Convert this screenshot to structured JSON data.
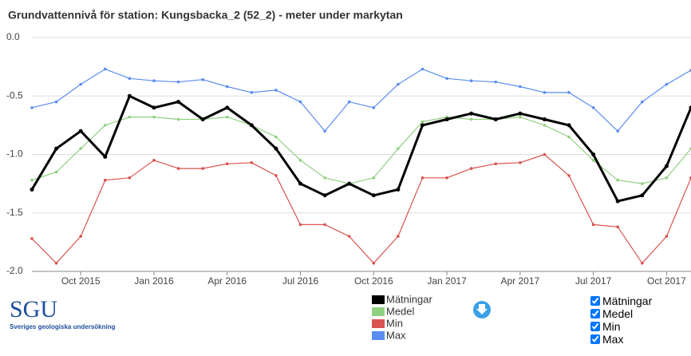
{
  "chart_data": {
    "type": "line",
    "title": "Grundvattennivå för station: Kungsbacka_2 (52_2) - meter under markytan",
    "x": [
      "2015-08",
      "2015-09",
      "2015-10",
      "2015-11",
      "2015-12",
      "2016-01",
      "2016-02",
      "2016-03",
      "2016-04",
      "2016-05",
      "2016-06",
      "2016-07",
      "2016-08",
      "2016-09",
      "2016-10",
      "2016-11",
      "2016-12",
      "2017-01",
      "2017-02",
      "2017-03",
      "2017-04",
      "2017-05",
      "2017-06",
      "2017-07",
      "2017-08",
      "2017-09",
      "2017-10",
      "2017-11"
    ],
    "xlim": [
      "2015-08",
      "2017-11"
    ],
    "xticks": [
      {
        "value": "2015-10",
        "label": "Oct 2015"
      },
      {
        "value": "2016-01",
        "label": "Jan 2016"
      },
      {
        "value": "2016-04",
        "label": "Apr 2016"
      },
      {
        "value": "2016-07",
        "label": "Jul 2016"
      },
      {
        "value": "2016-10",
        "label": "Oct 2016"
      },
      {
        "value": "2017-01",
        "label": "Jan 2017"
      },
      {
        "value": "2017-04",
        "label": "Apr 2017"
      },
      {
        "value": "2017-07",
        "label": "Jul 2017"
      },
      {
        "value": "2017-10",
        "label": "Oct 2017"
      }
    ],
    "ylim": [
      -2,
      0
    ],
    "yticks": [
      {
        "value": 0,
        "label": "0.0"
      },
      -0.5,
      {
        "value": -1,
        "label": "-1.0"
      },
      -1.5,
      {
        "value": -2,
        "label": "-2.0"
      }
    ],
    "grid": true,
    "series": [
      {
        "name": "Mätningar",
        "color": "#000000",
        "values": [
          -1.3,
          -0.95,
          -0.8,
          -1.02,
          -0.5,
          -0.6,
          -0.55,
          -0.7,
          -0.6,
          -0.75,
          -0.95,
          -1.25,
          -1.35,
          -1.25,
          -1.35,
          -1.3,
          -0.75,
          -0.7,
          -0.65,
          -0.7,
          -0.65,
          -0.7,
          -0.75,
          -1.0,
          -1.4,
          -1.35,
          -1.1,
          -0.6
        ]
      },
      {
        "name": "Medel",
        "color": "#90d080",
        "values": [
          -1.22,
          -1.15,
          -0.95,
          -0.75,
          -0.68,
          -0.68,
          -0.7,
          -0.7,
          -0.68,
          -0.75,
          -0.85,
          -1.05,
          -1.2,
          -1.25,
          -1.2,
          -0.95,
          -0.72,
          -0.68,
          -0.7,
          -0.7,
          -0.68,
          -0.75,
          -0.85,
          -1.05,
          -1.22,
          -1.25,
          -1.2,
          -0.95
        ]
      },
      {
        "name": "Min",
        "color": "#d9534f",
        "values": [
          -1.72,
          -1.93,
          -1.7,
          -1.22,
          -1.2,
          -1.05,
          -1.12,
          -1.12,
          -1.08,
          -1.07,
          -1.18,
          -1.6,
          -1.6,
          -1.7,
          -1.93,
          -1.7,
          -1.2,
          -1.2,
          -1.12,
          -1.08,
          -1.07,
          -1.0,
          -1.18,
          -1.6,
          -1.62,
          -1.93,
          -1.7,
          -1.2
        ]
      },
      {
        "name": "Max",
        "color": "#5b8def",
        "values": [
          -0.6,
          -0.55,
          -0.4,
          -0.27,
          -0.35,
          -0.37,
          -0.38,
          -0.36,
          -0.42,
          -0.47,
          -0.45,
          -0.55,
          -0.8,
          -0.55,
          -0.6,
          -0.4,
          -0.27,
          -0.35,
          -0.37,
          -0.38,
          -0.42,
          -0.47,
          -0.47,
          -0.6,
          -0.8,
          -0.55,
          -0.4,
          -0.28
        ]
      }
    ]
  },
  "logo": {
    "title": "SGU",
    "subtitle": "Sveriges geologiska undersökning"
  }
}
